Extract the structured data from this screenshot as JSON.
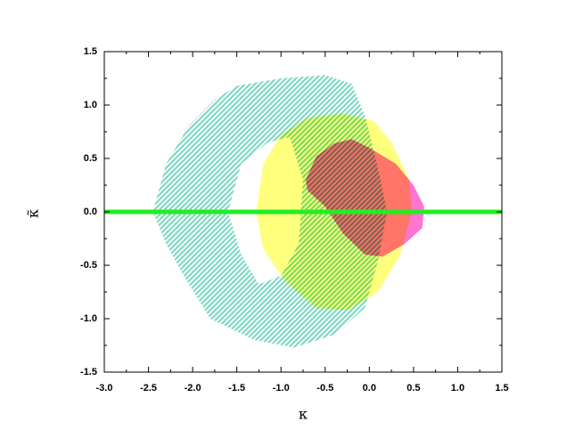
{
  "chart_data": {
    "type": "region",
    "x_label": "κ",
    "y_label": "κ̃",
    "xlim": [
      -3.0,
      1.5
    ],
    "ylim": [
      -1.5,
      1.5
    ],
    "xticks": [
      {
        "value": -3.0,
        "label": "-3.0"
      },
      {
        "value": -2.5,
        "label": "-2.5"
      },
      {
        "value": -2.0,
        "label": "-2.0"
      },
      {
        "value": -1.5,
        "label": "-1.5"
      },
      {
        "value": -1.0,
        "label": "-1.0"
      },
      -0.5,
      {
        "value": 0.0,
        "label": "0.0"
      },
      0.5,
      {
        "value": 1.0,
        "label": "1.0"
      },
      1.5
    ],
    "yticks": [
      -1.5,
      {
        "value": -1.0,
        "label": "-1.0"
      },
      -0.5,
      {
        "value": 0.0,
        "label": "0.0"
      },
      0.5,
      {
        "value": 1.0,
        "label": "1.0"
      },
      1.5
    ],
    "series": [
      {
        "type": "region",
        "color": "#7fd8c4",
        "hatch": true,
        "x": [
          -2.45,
          -2.3,
          -2.05,
          -1.75,
          -1.5,
          -1.0,
          -0.5,
          -0.2,
          -0.05,
          0.1,
          0.2,
          0.1,
          -0.05,
          -0.4,
          -0.85,
          -1.3,
          -1.8,
          -2.1,
          -2.3,
          null,
          -1.6,
          -1.45,
          -1.15,
          -0.9,
          -0.75,
          -0.8,
          -1.0,
          -1.25,
          -1.45
        ],
        "y": [
          0.0,
          0.45,
          0.8,
          1.05,
          1.18,
          1.25,
          1.28,
          1.2,
          0.9,
          0.4,
          0.0,
          -0.45,
          -0.9,
          -1.15,
          -1.27,
          -1.2,
          -1.0,
          -0.6,
          -0.3,
          null,
          0.0,
          0.45,
          0.65,
          0.7,
          0.3,
          -0.3,
          -0.6,
          -0.68,
          -0.4
        ]
      },
      {
        "type": "region",
        "color": "#ffff70",
        "x": [
          -1.28,
          -1.2,
          -1.0,
          -0.7,
          -0.3,
          0.05,
          0.25,
          0.45,
          0.48,
          0.35,
          0.1,
          -0.25,
          -0.6,
          -0.95,
          -1.2
        ],
        "y": [
          0.0,
          0.45,
          0.72,
          0.88,
          0.92,
          0.85,
          0.65,
          0.3,
          0.0,
          -0.4,
          -0.75,
          -0.92,
          -0.9,
          -0.65,
          -0.35
        ]
      },
      {
        "type": "region",
        "color": "#ff66cc",
        "x": [
          -0.72,
          -0.6,
          -0.4,
          -0.2,
          0.0,
          0.3,
          0.5,
          0.62,
          0.6,
          0.4,
          0.15,
          -0.05,
          -0.3,
          -0.5,
          -0.7
        ],
        "y": [
          0.3,
          0.52,
          0.64,
          0.68,
          0.6,
          0.45,
          0.25,
          0.05,
          -0.15,
          -0.3,
          -0.42,
          -0.4,
          -0.2,
          0.05,
          0.2
        ]
      },
      {
        "type": "line",
        "color": "#22ee22",
        "x": [
          -3.0,
          1.5
        ],
        "y": [
          0.0,
          0.0
        ]
      }
    ]
  }
}
